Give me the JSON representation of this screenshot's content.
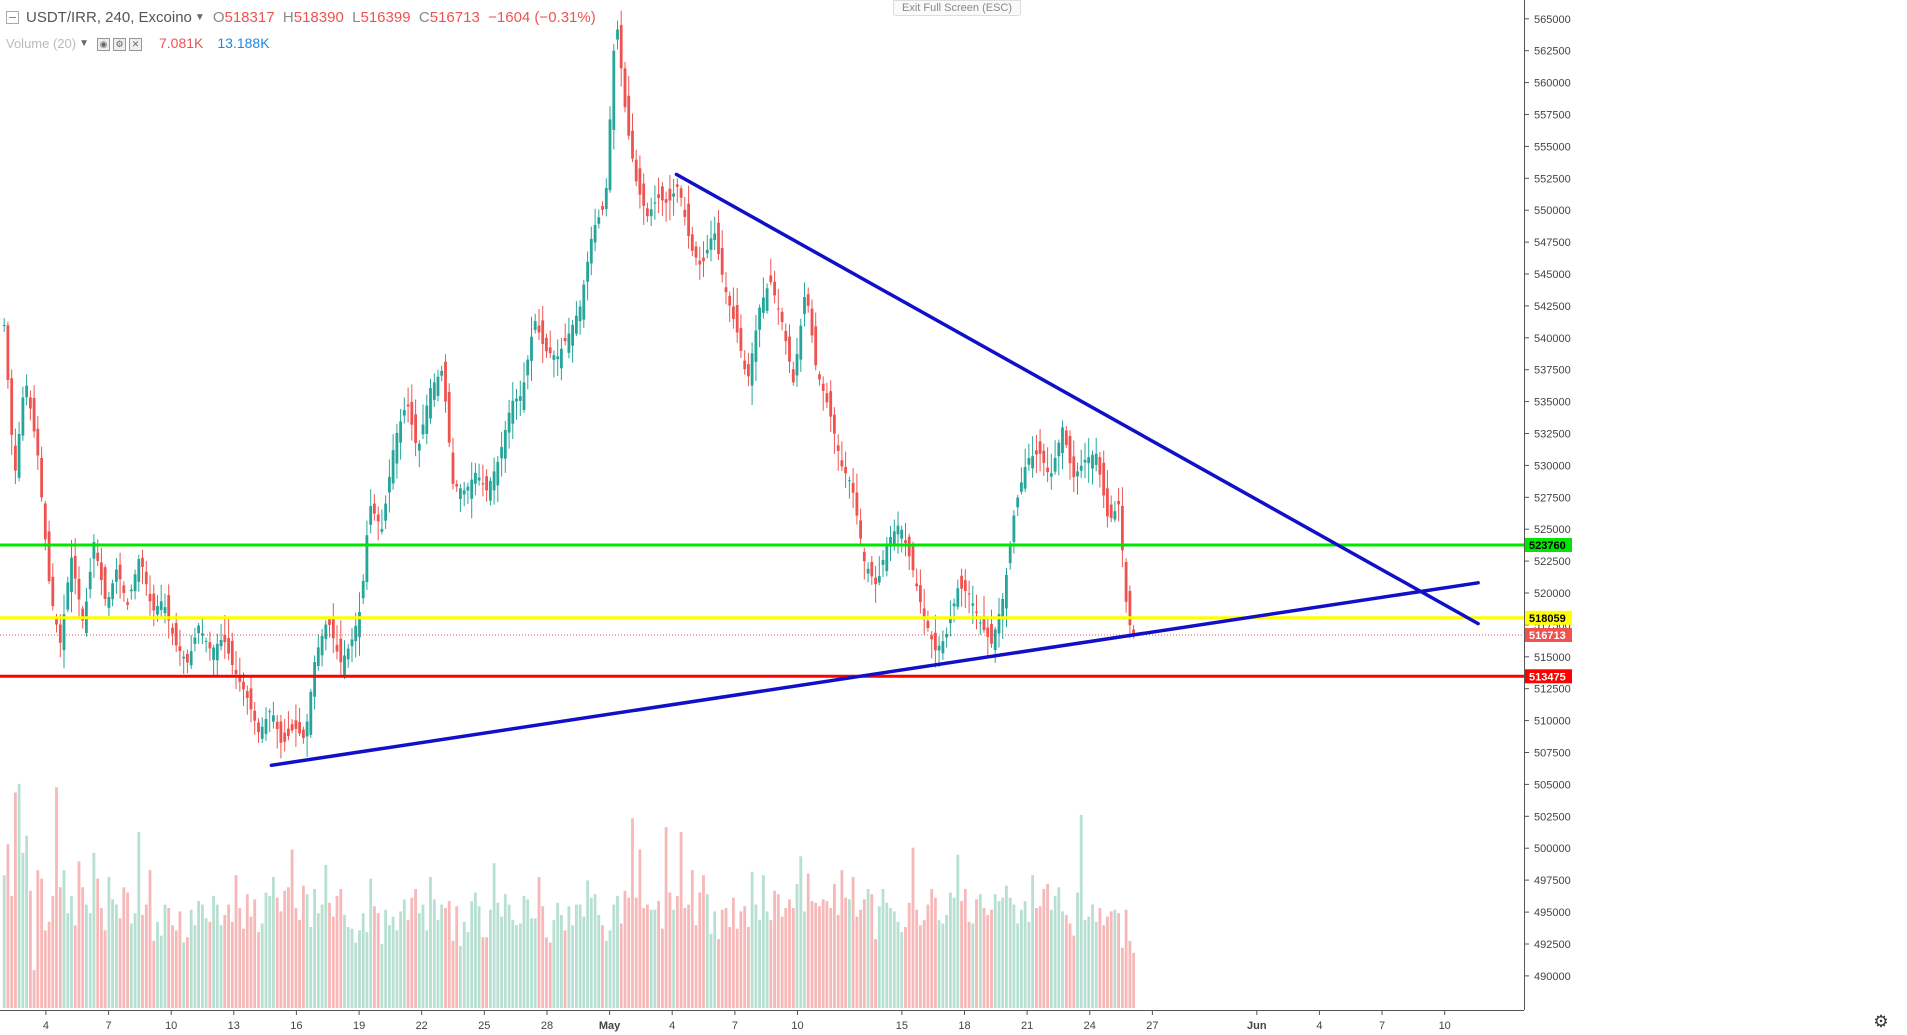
{
  "header": {
    "symbol": "USDT/IRR, 240, Excoino",
    "ohlc": [
      {
        "letter": "O",
        "value": "518317"
      },
      {
        "letter": "H",
        "value": "518390"
      },
      {
        "letter": "L",
        "value": "516399"
      },
      {
        "letter": "C",
        "value": "516713"
      }
    ],
    "change": "−1604 (−0.31%)"
  },
  "volume_legend": {
    "label": "Volume (20)",
    "value_a": "7.081K",
    "value_b": "13.188K"
  },
  "fullscreen_label": "Exit Full Screen (ESC)",
  "colors": {
    "up": "#26a69a",
    "down": "#ef5350",
    "vol_up": "#b8e0d2",
    "vol_down": "#f7b8b8",
    "support_green": "#00e600",
    "level_yellow": "#ffff00",
    "support_red": "#ff0000",
    "trend": "#1010c8"
  },
  "chart_data": {
    "type": "candlestick",
    "price_range": [
      488500,
      566000
    ],
    "price_ticks": [
      490000,
      492500,
      495000,
      497500,
      500000,
      502500,
      505000,
      507500,
      510000,
      512500,
      515000,
      517500,
      520000,
      522500,
      525000,
      527500,
      530000,
      532500,
      535000,
      537500,
      540000,
      542500,
      545000,
      547500,
      550000,
      552500,
      555000,
      557500,
      560000,
      562500,
      565000
    ],
    "x_ticks": [
      "4",
      "7",
      "10",
      "13",
      "16",
      "19",
      "22",
      "25",
      "28",
      "May",
      "4",
      "7",
      "10",
      "15",
      "18",
      "21",
      "24",
      "27",
      "Jun",
      "4",
      "7",
      "10"
    ],
    "x_tick_days": [
      4,
      7,
      10,
      13,
      16,
      19,
      22,
      25,
      28,
      31,
      34,
      37,
      40,
      45,
      48,
      51,
      54,
      57,
      62,
      65,
      68,
      71
    ],
    "x_day_range": [
      1.8,
      74.8
    ],
    "price_path": [
      [
        2.0,
        541000
      ],
      [
        2.5,
        529000
      ],
      [
        3.0,
        537000
      ],
      [
        3.6,
        531000
      ],
      [
        4.2,
        520000
      ],
      [
        4.7,
        516000
      ],
      [
        5.2,
        523000
      ],
      [
        5.8,
        517500
      ],
      [
        6.3,
        524000
      ],
      [
        6.9,
        519000
      ],
      [
        7.4,
        522000
      ],
      [
        7.9,
        519000
      ],
      [
        8.5,
        523000
      ],
      [
        9.1,
        518500
      ],
      [
        9.6,
        519500
      ],
      [
        10.2,
        516000
      ],
      [
        10.8,
        514500
      ],
      [
        11.3,
        517500
      ],
      [
        11.9,
        515500
      ],
      [
        12.5,
        516500
      ],
      [
        13.0,
        514000
      ],
      [
        13.6,
        512000
      ],
      [
        14.2,
        509000
      ],
      [
        14.8,
        511000
      ],
      [
        15.3,
        508000
      ],
      [
        15.9,
        509500
      ],
      [
        16.4,
        508500
      ],
      [
        16.9,
        515000
      ],
      [
        17.5,
        518000
      ],
      [
        18.1,
        514500
      ],
      [
        18.6,
        516000
      ],
      [
        19.1,
        519000
      ],
      [
        19.5,
        527000
      ],
      [
        20.1,
        525000
      ],
      [
        20.7,
        532000
      ],
      [
        21.3,
        535000
      ],
      [
        21.8,
        531000
      ],
      [
        22.4,
        536000
      ],
      [
        23.0,
        537500
      ],
      [
        23.5,
        528500
      ],
      [
        24.1,
        528000
      ],
      [
        24.6,
        529500
      ],
      [
        25.1,
        528000
      ],
      [
        25.7,
        530500
      ],
      [
        26.3,
        535000
      ],
      [
        26.8,
        535500
      ],
      [
        27.4,
        541500
      ],
      [
        27.9,
        539000
      ],
      [
        28.5,
        538500
      ],
      [
        29.1,
        540500
      ],
      [
        29.6,
        542500
      ],
      [
        30.2,
        548500
      ],
      [
        30.8,
        550500
      ],
      [
        31.3,
        565500
      ],
      [
        31.8,
        557000
      ],
      [
        32.3,
        552000
      ],
      [
        32.8,
        549500
      ],
      [
        33.3,
        551000
      ],
      [
        33.8,
        550500
      ],
      [
        34.3,
        552000
      ],
      [
        34.9,
        547000
      ],
      [
        35.4,
        545500
      ],
      [
        36.0,
        548500
      ],
      [
        36.5,
        544000
      ],
      [
        37.1,
        540500
      ],
      [
        37.6,
        536500
      ],
      [
        38.2,
        542500
      ],
      [
        38.7,
        544500
      ],
      [
        39.3,
        541000
      ],
      [
        39.8,
        536500
      ],
      [
        40.4,
        544000
      ],
      [
        40.9,
        537500
      ],
      [
        41.5,
        534500
      ],
      [
        42.1,
        530000
      ],
      [
        42.6,
        528500
      ],
      [
        43.2,
        522500
      ],
      [
        43.8,
        520500
      ],
      [
        44.3,
        524000
      ],
      [
        44.9,
        525500
      ],
      [
        45.5,
        522000
      ],
      [
        46.0,
        518500
      ],
      [
        46.6,
        515500
      ],
      [
        47.1,
        516500
      ],
      [
        47.7,
        520500
      ],
      [
        48.2,
        520000
      ],
      [
        48.8,
        517500
      ],
      [
        49.3,
        516000
      ],
      [
        49.9,
        520000
      ],
      [
        50.4,
        526500
      ],
      [
        51.0,
        530500
      ],
      [
        51.6,
        531000
      ],
      [
        52.1,
        529000
      ],
      [
        52.7,
        533000
      ],
      [
        53.2,
        529000
      ],
      [
        53.8,
        530500
      ],
      [
        54.3,
        531000
      ],
      [
        54.9,
        525500
      ],
      [
        55.4,
        527000
      ],
      [
        55.8,
        518000
      ],
      [
        56.1,
        516713
      ]
    ],
    "volume_range": [
      0,
      14500
    ],
    "volumes": [
      7700,
      9500,
      6500,
      12500,
      13000,
      9000,
      10000,
      6800,
      2200,
      8000,
      7500,
      4500,
      5000,
      6500,
      12800,
      7000,
      8000,
      5500,
      6500,
      4800,
      8500,
      7000,
      6000,
      5500,
      9000,
      7500,
      5800,
      4500,
      7600,
      6300,
      6000,
      5200,
      7000,
      6700,
      4900,
      5500,
      10200,
      5400,
      6000,
      8000,
      3900,
      5000,
      4200,
      6000,
      5800,
      4800,
      4500,
      5600,
      3800,
      4100,
      5700,
      4800,
      6200,
      6000,
      5200,
      5000,
      6500,
      6000,
      4800,
      5400,
      6000,
      5000,
      7700,
      5800,
      4600,
      6600,
      5300,
      6300,
      4400,
      4900,
      6700,
      6500,
      7600,
      6400,
      5600,
      6800,
      7000,
      9200,
      5800,
      5100,
      7100,
      6600,
      4700,
      6900,
      5500,
      6000,
      8300,
      6100,
      5300,
      6500,
      6900,
      5400,
      4700,
      4600,
      3800,
      4500,
      5500,
      4400,
      7500,
      5900,
      5500,
      3700,
      5700,
      4800,
      5300,
      4500,
      5600,
      6300,
      5100,
      6400,
      6900,
      5500,
      6000,
      4500,
      7600,
      6300,
      5100,
      6000,
      5800,
      6200,
      3900,
      5900,
      3600,
      5000,
      4400,
      6200,
      6700,
      5900,
      4100,
      4100,
      5700,
      8400,
      6100,
      5300,
      6600,
      6000,
      5100,
      4800,
      4900,
      6500,
      6300,
      5200,
      5200,
      7600,
      5900,
      4100,
      3800,
      5100,
      6100,
      5400,
      4500,
      5900,
      4800,
      6000,
      6000,
      5300,
      7400,
      6400,
      6600,
      5400,
      4800,
      3900,
      4500,
      6000,
      6500,
      4900,
      6800,
      6400,
      11000,
      6400,
      9200,
      5800,
      6000,
      5700,
      5700,
      6200,
      4600,
      10500,
      6700,
      5700,
      6500,
      10200,
      5800,
      6000,
      8000,
      4800,
      6700,
      7700,
      6600,
      4300,
      5600,
      4000,
      5700,
      5800,
      4700,
      6400,
      4600,
      5600,
      5900,
      4700,
      7900,
      6000,
      5100,
      7700,
      5600,
      5100,
      6800,
      6600,
      5300,
      5800,
      6300,
      5800,
      7200,
      8800,
      5600,
      7800,
      6200,
      6100,
      5900,
      6300,
      6200,
      5800,
      7200,
      5400,
      8000,
      6400,
      6300,
      7600,
      5300,
      5700,
      6300,
      6900,
      6600,
      4000,
      5900,
      6900,
      6100,
      5800,
      5600,
      5000,
      4400,
      4700,
      6100,
      9300,
      5700,
      4800,
      5100,
      6000,
      6900,
      6400,
      5100,
      4900,
      5400,
      6700,
      6400,
      8900,
      6200,
      6900,
      5000,
      4900,
      6300,
      6600,
      5800,
      5400,
      5700,
      6600,
      6200,
      6400,
      7100,
      6400,
      6000,
      4900,
      5700,
      6200,
      5000,
      7700,
      5800,
      5900,
      6900,
      7200,
      5700,
      6500,
      7000,
      5600,
      5400,
      4900,
      4200,
      6700,
      11200,
      5100,
      5300,
      6000,
      5000,
      5800,
      4800,
      5300,
      5600,
      5700,
      5500,
      3500,
      5700,
      3900,
      3200
    ],
    "horizontal_levels": [
      {
        "price": 523760,
        "label": "523760",
        "color": "#00e600",
        "label_bg": "#00e600",
        "label_color": "#000000"
      },
      {
        "price": 518059,
        "label": "518059",
        "color": "#ffff00",
        "label_bg": "#ffff00",
        "label_color": "#000000"
      },
      {
        "price": 513475,
        "label": "513475",
        "color": "#ff0000",
        "label_bg": "#ff0000",
        "label_color": "#ffffff"
      }
    ],
    "last_price": {
      "price": 516713,
      "label": "516713"
    },
    "trendlines": [
      {
        "from": [
          14.8,
          506500
        ],
        "to": [
          72.6,
          520800
        ]
      },
      {
        "from": [
          34.2,
          552800
        ],
        "to": [
          72.6,
          517600
        ]
      }
    ],
    "grid": false
  }
}
